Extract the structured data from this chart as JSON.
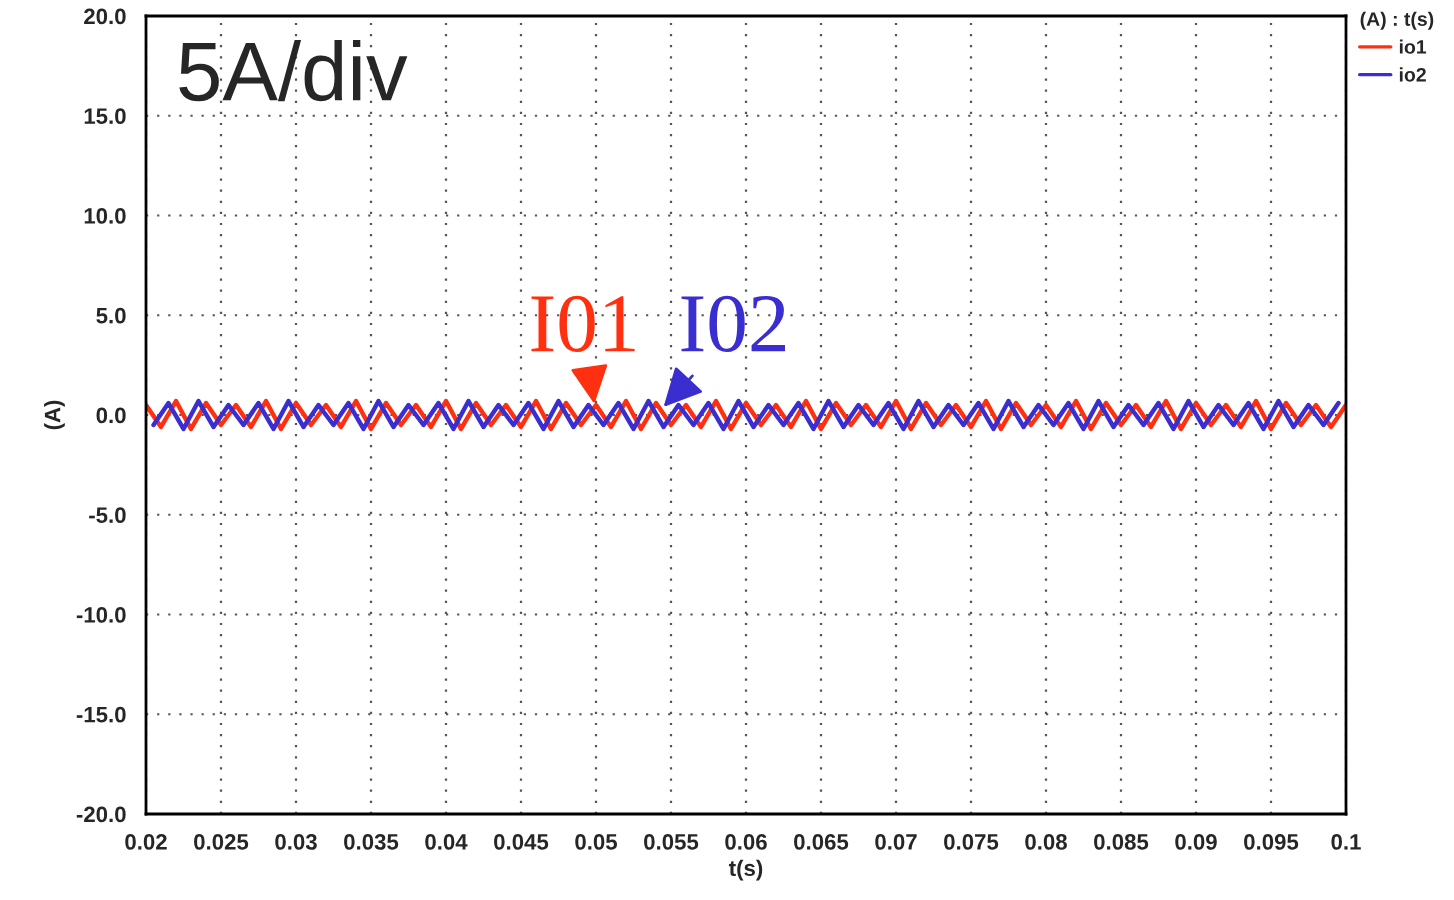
{
  "chart_data": {
    "type": "line",
    "xlabel": "t(s)",
    "ylabel": "(A)",
    "legend_title": "(A) : t(s)",
    "legend": "top right",
    "grid": true,
    "line_style": "solid",
    "xlim": [
      0.02,
      0.1
    ],
    "ylim": [
      -20,
      20
    ],
    "xticks": [
      0.02,
      0.025,
      0.03,
      0.035,
      0.04,
      0.045,
      0.05,
      0.055,
      0.06,
      0.065,
      0.07,
      0.075,
      0.08,
      0.085,
      0.09,
      0.095,
      0.1
    ],
    "yticks": [
      {
        "value": -20,
        "label": "-20.0"
      },
      {
        "value": -15,
        "label": "-15.0"
      },
      {
        "value": -10,
        "label": "-10.0"
      },
      {
        "value": -5,
        "label": "-5.0"
      },
      {
        "value": 0,
        "label": "0.0"
      },
      {
        "value": 5,
        "label": "5.0"
      },
      {
        "value": 10,
        "label": "10.0"
      },
      {
        "value": 15,
        "label": "15.0"
      },
      {
        "value": 20,
        "label": "20.0"
      }
    ],
    "annotations": [
      "5A/div",
      {
        "text": "I01",
        "x": 0.05,
        "y": 0
      },
      {
        "text": "I02",
        "x": 0.054,
        "y": 0
      }
    ],
    "series": [
      {
        "name": "io1",
        "color": "#ff3010",
        "x": [
          0.02,
          0.021,
          0.022,
          0.023,
          0.024,
          0.025,
          0.026,
          0.027,
          0.028,
          0.029,
          0.03,
          0.031,
          0.032,
          0.033,
          0.034,
          0.035,
          0.036,
          0.037,
          0.038,
          0.039,
          0.04,
          0.041,
          0.042,
          0.043,
          0.044,
          0.045,
          0.046,
          0.047,
          0.048,
          0.049,
          0.05,
          0.051,
          0.052,
          0.053,
          0.054,
          0.055,
          0.056,
          0.057,
          0.058,
          0.059,
          0.06,
          0.061,
          0.062,
          0.063,
          0.064,
          0.065,
          0.066,
          0.067,
          0.068,
          0.069,
          0.07,
          0.071,
          0.072,
          0.073,
          0.074,
          0.075,
          0.076,
          0.077,
          0.078,
          0.079,
          0.08,
          0.081,
          0.082,
          0.083,
          0.084,
          0.085,
          0.086,
          0.087,
          0.088,
          0.089,
          0.09,
          0.091,
          0.092,
          0.093,
          0.094,
          0.095,
          0.096,
          0.097,
          0.098,
          0.099,
          0.1
        ],
        "values": [
          0.5,
          -0.6,
          0.7,
          -0.7,
          0.6,
          -0.5,
          0.5,
          -0.6,
          0.7,
          -0.7,
          0.6,
          -0.5,
          0.5,
          -0.6,
          0.7,
          -0.7,
          0.6,
          -0.5,
          0.5,
          -0.6,
          0.7,
          -0.7,
          0.6,
          -0.5,
          0.5,
          -0.6,
          0.7,
          -0.7,
          0.6,
          -0.5,
          0.5,
          -0.6,
          0.7,
          -0.7,
          0.6,
          -0.5,
          0.5,
          -0.6,
          0.7,
          -0.7,
          0.6,
          -0.5,
          0.5,
          -0.6,
          0.7,
          -0.7,
          0.6,
          -0.5,
          0.5,
          -0.6,
          0.7,
          -0.7,
          0.6,
          -0.5,
          0.5,
          -0.6,
          0.7,
          -0.7,
          0.6,
          -0.5,
          0.5,
          -0.6,
          0.7,
          -0.7,
          0.6,
          -0.5,
          0.5,
          -0.6,
          0.7,
          -0.7,
          0.6,
          -0.5,
          0.5,
          -0.6,
          0.7,
          -0.7,
          0.6,
          -0.5,
          0.5,
          -0.6,
          0.5
        ]
      },
      {
        "name": "io2",
        "color": "#3a2ed0",
        "x": [
          0.0205,
          0.0215,
          0.0225,
          0.0235,
          0.0245,
          0.0255,
          0.0265,
          0.0275,
          0.0285,
          0.0295,
          0.0305,
          0.0315,
          0.0325,
          0.0335,
          0.0345,
          0.0355,
          0.0365,
          0.0375,
          0.0385,
          0.0395,
          0.0405,
          0.0415,
          0.0425,
          0.0435,
          0.0445,
          0.0455,
          0.0465,
          0.0475,
          0.0485,
          0.0495,
          0.0505,
          0.0515,
          0.0525,
          0.0535,
          0.0545,
          0.0555,
          0.0565,
          0.0575,
          0.0585,
          0.0595,
          0.0605,
          0.0615,
          0.0625,
          0.0635,
          0.0645,
          0.0655,
          0.0665,
          0.0675,
          0.0685,
          0.0695,
          0.0705,
          0.0715,
          0.0725,
          0.0735,
          0.0745,
          0.0755,
          0.0765,
          0.0775,
          0.0785,
          0.0795,
          0.0805,
          0.0815,
          0.0825,
          0.0835,
          0.0845,
          0.0855,
          0.0865,
          0.0875,
          0.0885,
          0.0895,
          0.0905,
          0.0915,
          0.0925,
          0.0935,
          0.0945,
          0.0955,
          0.0965,
          0.0975,
          0.0985,
          0.0995
        ],
        "values": [
          -0.5,
          0.6,
          -0.7,
          0.7,
          -0.6,
          0.5,
          -0.5,
          0.6,
          -0.7,
          0.7,
          -0.6,
          0.5,
          -0.5,
          0.6,
          -0.7,
          0.7,
          -0.6,
          0.5,
          -0.5,
          0.6,
          -0.7,
          0.7,
          -0.6,
          0.5,
          -0.5,
          0.6,
          -0.7,
          0.7,
          -0.6,
          0.5,
          -0.5,
          0.6,
          -0.7,
          0.7,
          -0.6,
          0.5,
          -0.5,
          0.6,
          -0.7,
          0.7,
          -0.6,
          0.5,
          -0.5,
          0.6,
          -0.7,
          0.7,
          -0.6,
          0.5,
          -0.5,
          0.6,
          -0.7,
          0.7,
          -0.6,
          0.5,
          -0.5,
          0.6,
          -0.7,
          0.7,
          -0.6,
          0.5,
          -0.5,
          0.6,
          -0.7,
          0.7,
          -0.6,
          0.5,
          -0.5,
          0.6,
          -0.7,
          0.7,
          -0.6,
          0.5,
          -0.5,
          0.6,
          -0.7,
          0.7,
          -0.6,
          0.5,
          -0.5,
          0.6
        ]
      }
    ]
  }
}
